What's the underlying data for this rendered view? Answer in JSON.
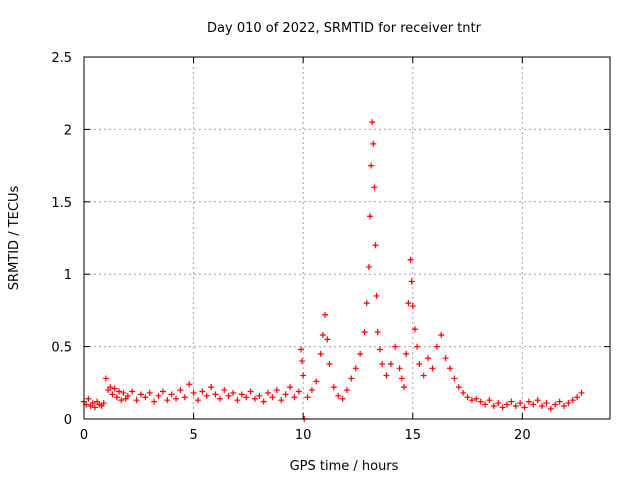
{
  "chart_data": {
    "type": "scatter",
    "title": "Day 010 of 2022, SRMTID for receiver tntr",
    "xlabel": "GPS time / hours",
    "ylabel": "SRMTID / TECUs",
    "xlim": [
      0,
      24
    ],
    "ylim": [
      0,
      2.5
    ],
    "xticks": [
      0,
      5,
      10,
      15,
      20
    ],
    "yticks": [
      0,
      0.5,
      1,
      1.5,
      2,
      2.5
    ],
    "ytick_labels": [
      "0",
      "0.5",
      "1",
      "1.5",
      "2",
      "2.5"
    ],
    "grid": true,
    "marker": "+",
    "series": [
      {
        "name": "tntr",
        "color": "#ff0000",
        "points": [
          [
            0.0,
            0.12
          ],
          [
            0.1,
            0.1
          ],
          [
            0.2,
            0.14
          ],
          [
            0.3,
            0.09
          ],
          [
            0.4,
            0.11
          ],
          [
            0.5,
            0.08
          ],
          [
            0.6,
            0.12
          ],
          [
            0.7,
            0.1
          ],
          [
            0.8,
            0.09
          ],
          [
            0.9,
            0.11
          ],
          [
            1.0,
            0.28
          ],
          [
            1.1,
            0.2
          ],
          [
            1.2,
            0.22
          ],
          [
            1.3,
            0.17
          ],
          [
            1.4,
            0.21
          ],
          [
            1.5,
            0.15
          ],
          [
            1.6,
            0.19
          ],
          [
            1.7,
            0.13
          ],
          [
            1.8,
            0.18
          ],
          [
            1.9,
            0.14
          ],
          [
            2.0,
            0.16
          ],
          [
            2.2,
            0.19
          ],
          [
            2.4,
            0.13
          ],
          [
            2.6,
            0.17
          ],
          [
            2.8,
            0.15
          ],
          [
            3.0,
            0.18
          ],
          [
            3.2,
            0.12
          ],
          [
            3.4,
            0.16
          ],
          [
            3.6,
            0.19
          ],
          [
            3.8,
            0.13
          ],
          [
            4.0,
            0.17
          ],
          [
            4.2,
            0.14
          ],
          [
            4.4,
            0.2
          ],
          [
            4.6,
            0.15
          ],
          [
            4.8,
            0.24
          ],
          [
            5.0,
            0.18
          ],
          [
            5.2,
            0.13
          ],
          [
            5.4,
            0.19
          ],
          [
            5.6,
            0.16
          ],
          [
            5.8,
            0.22
          ],
          [
            6.0,
            0.17
          ],
          [
            6.2,
            0.14
          ],
          [
            6.4,
            0.2
          ],
          [
            6.6,
            0.16
          ],
          [
            6.8,
            0.18
          ],
          [
            7.0,
            0.13
          ],
          [
            7.2,
            0.17
          ],
          [
            7.4,
            0.15
          ],
          [
            7.6,
            0.19
          ],
          [
            7.8,
            0.14
          ],
          [
            8.0,
            0.16
          ],
          [
            8.2,
            0.12
          ],
          [
            8.4,
            0.18
          ],
          [
            8.6,
            0.15
          ],
          [
            8.8,
            0.2
          ],
          [
            9.0,
            0.13
          ],
          [
            9.2,
            0.17
          ],
          [
            9.4,
            0.22
          ],
          [
            9.6,
            0.15
          ],
          [
            9.8,
            0.19
          ],
          [
            9.9,
            0.48
          ],
          [
            9.95,
            0.4
          ],
          [
            10.0,
            0.3
          ],
          [
            10.05,
            0.0
          ],
          [
            10.2,
            0.15
          ],
          [
            10.4,
            0.2
          ],
          [
            10.6,
            0.26
          ],
          [
            10.8,
            0.45
          ],
          [
            10.9,
            0.58
          ],
          [
            11.0,
            0.72
          ],
          [
            11.1,
            0.55
          ],
          [
            11.2,
            0.38
          ],
          [
            11.4,
            0.22
          ],
          [
            11.6,
            0.16
          ],
          [
            11.8,
            0.14
          ],
          [
            12.0,
            0.2
          ],
          [
            12.2,
            0.28
          ],
          [
            12.4,
            0.35
          ],
          [
            12.6,
            0.45
          ],
          [
            12.8,
            0.6
          ],
          [
            12.9,
            0.8
          ],
          [
            13.0,
            1.05
          ],
          [
            13.05,
            1.4
          ],
          [
            13.1,
            1.75
          ],
          [
            13.15,
            2.05
          ],
          [
            13.2,
            1.9
          ],
          [
            13.25,
            1.6
          ],
          [
            13.3,
            1.2
          ],
          [
            13.35,
            0.85
          ],
          [
            13.4,
            0.6
          ],
          [
            13.5,
            0.48
          ],
          [
            13.6,
            0.38
          ],
          [
            13.8,
            0.3
          ],
          [
            14.0,
            0.38
          ],
          [
            14.2,
            0.5
          ],
          [
            14.4,
            0.35
          ],
          [
            14.5,
            0.28
          ],
          [
            14.6,
            0.22
          ],
          [
            14.7,
            0.45
          ],
          [
            14.8,
            0.8
          ],
          [
            14.9,
            1.1
          ],
          [
            14.95,
            0.95
          ],
          [
            15.0,
            0.78
          ],
          [
            15.1,
            0.62
          ],
          [
            15.2,
            0.5
          ],
          [
            15.3,
            0.38
          ],
          [
            15.5,
            0.3
          ],
          [
            15.7,
            0.42
          ],
          [
            15.9,
            0.35
          ],
          [
            16.1,
            0.5
          ],
          [
            16.3,
            0.58
          ],
          [
            16.5,
            0.42
          ],
          [
            16.7,
            0.35
          ],
          [
            16.9,
            0.28
          ],
          [
            17.1,
            0.22
          ],
          [
            17.3,
            0.18
          ],
          [
            17.5,
            0.15
          ],
          [
            17.7,
            0.13
          ],
          [
            17.9,
            0.14
          ],
          [
            18.1,
            0.12
          ],
          [
            18.3,
            0.1
          ],
          [
            18.5,
            0.13
          ],
          [
            18.7,
            0.09
          ],
          [
            18.9,
            0.11
          ],
          [
            19.1,
            0.08
          ],
          [
            19.3,
            0.1
          ],
          [
            19.5,
            0.12
          ],
          [
            19.7,
            0.09
          ],
          [
            19.9,
            0.11
          ],
          [
            20.1,
            0.08
          ],
          [
            20.3,
            0.12
          ],
          [
            20.5,
            0.1
          ],
          [
            20.7,
            0.13
          ],
          [
            20.9,
            0.09
          ],
          [
            21.1,
            0.11
          ],
          [
            21.3,
            0.07
          ],
          [
            21.5,
            0.1
          ],
          [
            21.7,
            0.12
          ],
          [
            21.9,
            0.09
          ],
          [
            22.1,
            0.11
          ],
          [
            22.3,
            0.13
          ],
          [
            22.5,
            0.15
          ],
          [
            22.7,
            0.18
          ]
        ]
      }
    ]
  }
}
